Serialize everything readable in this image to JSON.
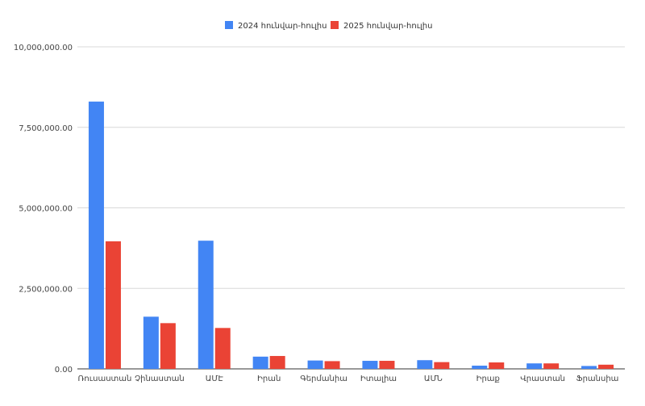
{
  "chart_data": {
    "type": "bar",
    "title": "",
    "xlabel": "",
    "ylabel": "",
    "ylim": [
      0,
      10000000
    ],
    "yticks": [
      "0.00",
      "2,500,000.00",
      "5,000,000.00",
      "7,500,000.00",
      "10,000,000.00"
    ],
    "ytick_values": [
      0,
      2500000,
      5000000,
      7500000,
      10000000
    ],
    "grid": true,
    "legend_position": "top",
    "categories": [
      "Ռուսաստան",
      "Չինաստան",
      "ԱՄԷ",
      "Իրան",
      "Գերմանիա",
      "Իտալիա",
      "ԱՄՆ",
      "Իրաք",
      "Վրաստան",
      "Ֆրանսիա"
    ],
    "series": [
      {
        "name": "2024 հունվար-հուլիս",
        "color": "#4285f4",
        "values": [
          8300000,
          1620000,
          3980000,
          380000,
          260000,
          250000,
          270000,
          100000,
          170000,
          90000
        ]
      },
      {
        "name": "2025 հունվար-հուլիս",
        "color": "#ea4335",
        "values": [
          3960000,
          1420000,
          1270000,
          400000,
          240000,
          250000,
          210000,
          200000,
          170000,
          130000
        ]
      }
    ]
  }
}
